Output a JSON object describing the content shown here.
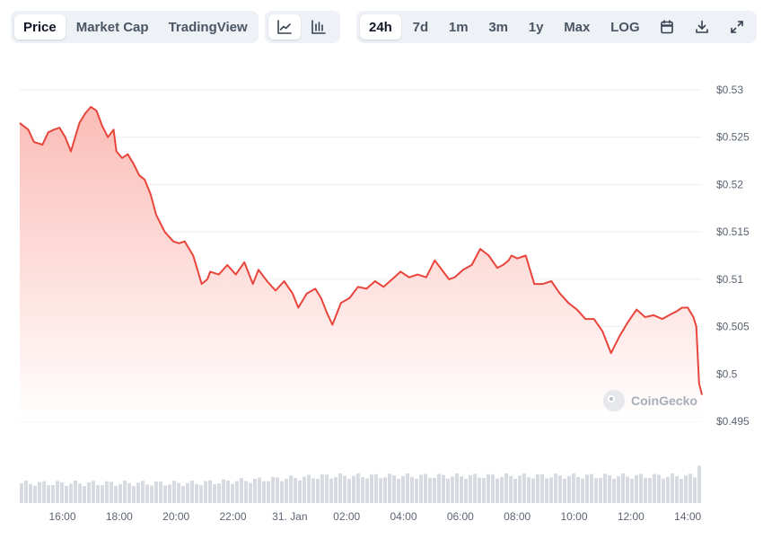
{
  "toolbar": {
    "view_tabs": [
      "Price",
      "Market Cap",
      "TradingView"
    ],
    "active_view": "Price",
    "chart_style_icons": [
      "line-chart-icon",
      "bar-chart-icon"
    ],
    "ranges": [
      "24h",
      "7d",
      "1m",
      "3m",
      "1y",
      "Max",
      "LOG"
    ],
    "active_range": "24h",
    "action_icons": [
      "calendar-icon",
      "download-icon",
      "expand-icon"
    ]
  },
  "watermark": "CoinGecko",
  "colors": {
    "line": "#e8453c",
    "fill_top": "#fbbcb6",
    "fill_bottom": "#ffffff",
    "volume": "#d7dbe1",
    "grid": "#eceef1"
  },
  "chart_data": {
    "type": "area",
    "y_axis": {
      "position": "right",
      "ticks": [
        0.495,
        0.5,
        0.505,
        0.51,
        0.515,
        0.52,
        0.525,
        0.53
      ],
      "tick_labels": [
        "$0.495",
        "$0.5",
        "$0.505",
        "$0.51",
        "$0.515",
        "$0.52",
        "$0.525",
        "$0.53"
      ],
      "ylim": [
        0.495,
        0.53
      ]
    },
    "x_axis": {
      "tick_labels": [
        "16:00",
        "18:00",
        "20:00",
        "22:00",
        "31. Jan",
        "02:00",
        "04:00",
        "06:00",
        "08:00",
        "10:00",
        "12:00",
        "14:00"
      ],
      "tick_hours": [
        16,
        18,
        20,
        22,
        24,
        26,
        28,
        30,
        32,
        34,
        36,
        38
      ],
      "xlim_hours": [
        14.5,
        38.5
      ]
    },
    "grid": true,
    "series": [
      {
        "x_hours": [
          14.5,
          14.8,
          15.0,
          15.3,
          15.5,
          15.7,
          15.9,
          16.1,
          16.3,
          16.5,
          16.6,
          16.8,
          17.0,
          17.2,
          17.4,
          17.6,
          17.8,
          17.9,
          18.1,
          18.3,
          18.5,
          18.7,
          18.9,
          19.1,
          19.3,
          19.6,
          19.9,
          20.1,
          20.3,
          20.6,
          20.9,
          21.1,
          21.2,
          21.5,
          21.8,
          22.1,
          22.4,
          22.7,
          22.9,
          23.2,
          23.5,
          23.8,
          24.1,
          24.3,
          24.6,
          24.9,
          25.1,
          25.3,
          25.5,
          25.8,
          26.1,
          26.4,
          26.7,
          27.0,
          27.3,
          27.6,
          27.9,
          28.2,
          28.5,
          28.8,
          29.1,
          29.4,
          29.6,
          29.8,
          30.1,
          30.4,
          30.7,
          31.0,
          31.3,
          31.5,
          31.7,
          31.8,
          32.0,
          32.3,
          32.6,
          32.9,
          33.2,
          33.5,
          33.8,
          34.1,
          34.4,
          34.7,
          35.0,
          35.3,
          35.6,
          35.9,
          36.2,
          36.5,
          36.8,
          37.1,
          37.4,
          37.6,
          37.8,
          38.0,
          38.2,
          38.3,
          38.4,
          38.5
        ],
        "values": [
          0.5265,
          0.5258,
          0.5245,
          0.5242,
          0.5255,
          0.5258,
          0.526,
          0.525,
          0.5235,
          0.5255,
          0.5265,
          0.5275,
          0.5282,
          0.5278,
          0.5262,
          0.525,
          0.5258,
          0.5235,
          0.5228,
          0.5232,
          0.5222,
          0.521,
          0.5205,
          0.519,
          0.5168,
          0.515,
          0.514,
          0.5138,
          0.514,
          0.5125,
          0.5095,
          0.51,
          0.5108,
          0.5105,
          0.5115,
          0.5105,
          0.5118,
          0.5095,
          0.511,
          0.5098,
          0.5088,
          0.5098,
          0.5085,
          0.507,
          0.5085,
          0.509,
          0.508,
          0.5065,
          0.5052,
          0.5075,
          0.508,
          0.5092,
          0.509,
          0.5098,
          0.5092,
          0.51,
          0.5108,
          0.5102,
          0.5105,
          0.5102,
          0.512,
          0.5108,
          0.51,
          0.5102,
          0.511,
          0.5115,
          0.5132,
          0.5125,
          0.5112,
          0.5115,
          0.512,
          0.5125,
          0.5122,
          0.5125,
          0.5095,
          0.5095,
          0.5098,
          0.5085,
          0.5075,
          0.5068,
          0.5058,
          0.5058,
          0.5045,
          0.5022,
          0.504,
          0.5055,
          0.5068,
          0.506,
          0.5062,
          0.5058,
          0.5063,
          0.5066,
          0.507,
          0.507,
          0.506,
          0.505,
          0.499,
          0.4978
        ]
      }
    ]
  }
}
